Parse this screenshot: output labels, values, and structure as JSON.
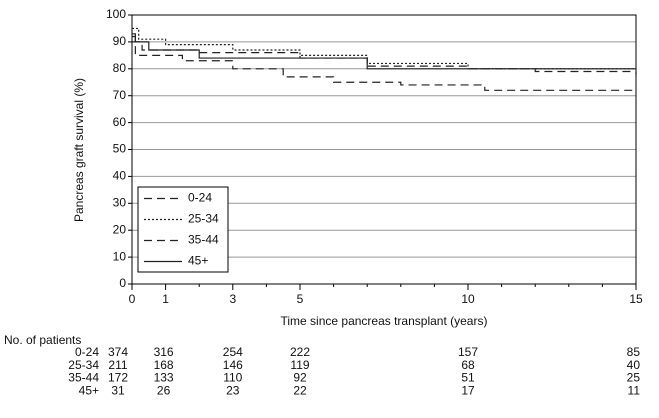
{
  "chart_data": {
    "type": "step",
    "ylabel": "Pancreas graft survival (%)",
    "xlabel": "Time since pancreas transplant (years)",
    "xlim": [
      0,
      15
    ],
    "xticks": [
      0,
      1,
      3,
      5,
      10,
      15
    ],
    "xminorticks": [
      2,
      4,
      6,
      7,
      8,
      9,
      11,
      12,
      13,
      14
    ],
    "ylim": [
      0,
      100
    ],
    "yticks": [
      0,
      10,
      20,
      30,
      40,
      50,
      60,
      70,
      80,
      90,
      100
    ],
    "grid": true,
    "legend": "lower left",
    "series": [
      {
        "name": "0-24",
        "color": "#222222",
        "style": "dashed",
        "x": [
          0,
          0.1,
          1.5,
          3,
          4.5,
          6,
          8,
          10.5,
          15
        ],
        "values": [
          92,
          85,
          83,
          80,
          77,
          75,
          74,
          72,
          72
        ]
      },
      {
        "name": "25-34",
        "color": "#222222",
        "style": "dotted",
        "x": [
          0,
          0.2,
          1,
          3,
          5,
          7,
          10,
          15
        ],
        "values": [
          95,
          91,
          89,
          87,
          85,
          82,
          80,
          78
        ]
      },
      {
        "name": "35-44",
        "color": "#222222",
        "style": "dashed",
        "x": [
          0,
          0.3,
          2,
          5,
          7,
          10,
          12,
          15
        ],
        "values": [
          90,
          87,
          86,
          84,
          81,
          80,
          79,
          77
        ]
      },
      {
        "name": "45+",
        "color": "#222222",
        "style": "solid",
        "x": [
          0,
          0.1,
          0.5,
          2,
          7,
          15
        ],
        "values": [
          93,
          90,
          87,
          84,
          80,
          80
        ]
      }
    ],
    "risk_table": {
      "title": "No. of patients",
      "rows": [
        {
          "name": "0-24",
          "counts": [
            374,
            316,
            254,
            222,
            157,
            85
          ]
        },
        {
          "name": "25-34",
          "counts": [
            211,
            168,
            146,
            119,
            68,
            40
          ]
        },
        {
          "name": "35-44",
          "counts": [
            172,
            133,
            110,
            92,
            51,
            25
          ]
        },
        {
          "name": "45+",
          "counts": [
            31,
            26,
            23,
            22,
            17,
            11
          ]
        }
      ]
    }
  }
}
